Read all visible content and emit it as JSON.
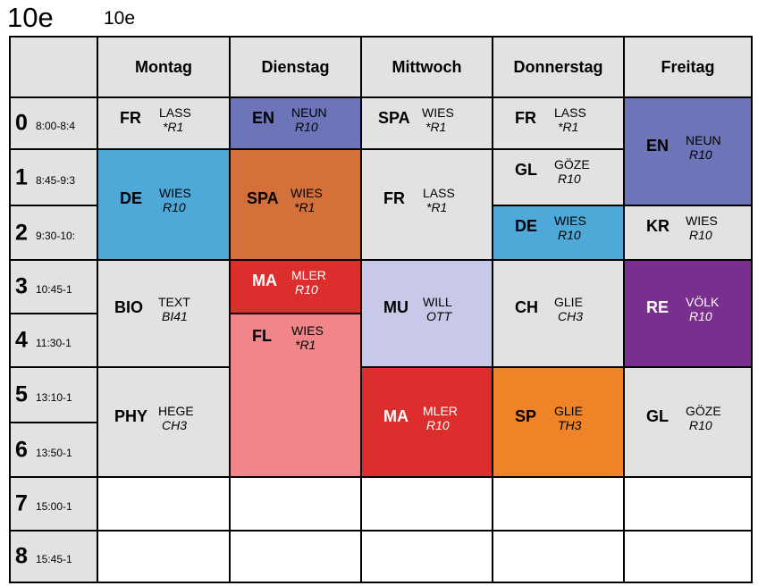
{
  "class_title": "10e",
  "class_subtitle": "10e",
  "days": [
    "Montag",
    "Dienstag",
    "Mittwoch",
    "Donnerstag",
    "Freitag"
  ],
  "periods": [
    {
      "num": "0",
      "time": "8:00-8:4"
    },
    {
      "num": "1",
      "time": "8:45-9:3"
    },
    {
      "num": "2",
      "time": "9:30-10:"
    },
    {
      "num": "3",
      "time": "10:45-1"
    },
    {
      "num": "4",
      "time": "11:30-1"
    },
    {
      "num": "5",
      "time": "13:10-1"
    },
    {
      "num": "6",
      "time": "13:50-1"
    },
    {
      "num": "7",
      "time": "15:00-1"
    },
    {
      "num": "8",
      "time": "15:45-1"
    }
  ],
  "lessons": [
    {
      "day": 0,
      "start": 0,
      "span": 1,
      "subject": "FR",
      "teacher": "LASS",
      "room": "*R1",
      "color": "#e2e2e2"
    },
    {
      "day": 0,
      "start": 1,
      "span": 2,
      "subject": "DE",
      "teacher": "WIES",
      "room": "R10",
      "color": "#4ea8d8"
    },
    {
      "day": 0,
      "start": 3,
      "span": 2,
      "subject": "BIO",
      "teacher": "TEXT",
      "room": "BI41",
      "color": "#e2e2e2"
    },
    {
      "day": 0,
      "start": 5,
      "span": 2,
      "subject": "PHY",
      "teacher": "HEGE",
      "room": "CH3",
      "color": "#e2e2e2"
    },
    {
      "day": 1,
      "start": 0,
      "span": 1,
      "subject": "EN",
      "teacher": "NEUN",
      "room": "R10",
      "color": "#6e74b8"
    },
    {
      "day": 1,
      "start": 1,
      "span": 2,
      "subject": "SPA",
      "teacher": "WIES",
      "room": "*R1",
      "color": "#d4703a"
    },
    {
      "day": 1,
      "start": 3,
      "span": 1,
      "subject": "MA",
      "teacher": "MLER",
      "room": "R10",
      "color": "#dd2e2e"
    },
    {
      "day": 1,
      "start": 4,
      "span": 3,
      "subject": "FL",
      "teacher": "WIES",
      "room": "*R1",
      "color": "#f0868a"
    },
    {
      "day": 2,
      "start": 0,
      "span": 1,
      "subject": "SPA",
      "teacher": "WIES",
      "room": "*R1",
      "color": "#e2e2e2"
    },
    {
      "day": 2,
      "start": 1,
      "span": 2,
      "subject": "FR",
      "teacher": "LASS",
      "room": "*R1",
      "color": "#e2e2e2"
    },
    {
      "day": 2,
      "start": 3,
      "span": 2,
      "subject": "MU",
      "teacher": "WILL",
      "room": "OTT",
      "color": "#c8c8e8"
    },
    {
      "day": 2,
      "start": 5,
      "span": 2,
      "subject": "MA",
      "teacher": "MLER",
      "room": "R10",
      "color": "#dd2e2e"
    },
    {
      "day": 3,
      "start": 0,
      "span": 1,
      "subject": "FR",
      "teacher": "LASS",
      "room": "*R1",
      "color": "#e2e2e2"
    },
    {
      "day": 3,
      "start": 1,
      "span": 1,
      "subject": "GL",
      "teacher": "GÖZE",
      "room": "R10",
      "color": "#e2e2e2"
    },
    {
      "day": 3,
      "start": 2,
      "span": 1,
      "subject": "DE",
      "teacher": "WIES",
      "room": "R10",
      "color": "#4ea8d8"
    },
    {
      "day": 3,
      "start": 3,
      "span": 2,
      "subject": "CH",
      "teacher": "GLIE",
      "room": "CH3",
      "color": "#e2e2e2"
    },
    {
      "day": 3,
      "start": 5,
      "span": 2,
      "subject": "SP",
      "teacher": "GLIE",
      "room": "TH3",
      "color": "#ef8328"
    },
    {
      "day": 4,
      "start": 0,
      "span": 2,
      "subject": "EN",
      "teacher": "NEUN",
      "room": "R10",
      "color": "#6e74b8"
    },
    {
      "day": 4,
      "start": 2,
      "span": 1,
      "subject": "KR",
      "teacher": "WIES",
      "room": "R10",
      "color": "#e2e2e2"
    },
    {
      "day": 4,
      "start": 3,
      "span": 2,
      "subject": "RE",
      "teacher": "VÖLK",
      "room": "R10",
      "color": "#7a2f8e"
    },
    {
      "day": 4,
      "start": 5,
      "span": 2,
      "subject": "GL",
      "teacher": "GÖZE",
      "room": "R10",
      "color": "#e2e2e2"
    }
  ],
  "empty_slots": [
    {
      "day": 0,
      "period": 7
    },
    {
      "day": 1,
      "period": 7
    },
    {
      "day": 2,
      "period": 7
    },
    {
      "day": 3,
      "period": 7
    },
    {
      "day": 4,
      "period": 7
    },
    {
      "day": 0,
      "period": 8
    },
    {
      "day": 1,
      "period": 8
    },
    {
      "day": 2,
      "period": 8
    },
    {
      "day": 3,
      "period": 8
    },
    {
      "day": 4,
      "period": 8
    }
  ]
}
